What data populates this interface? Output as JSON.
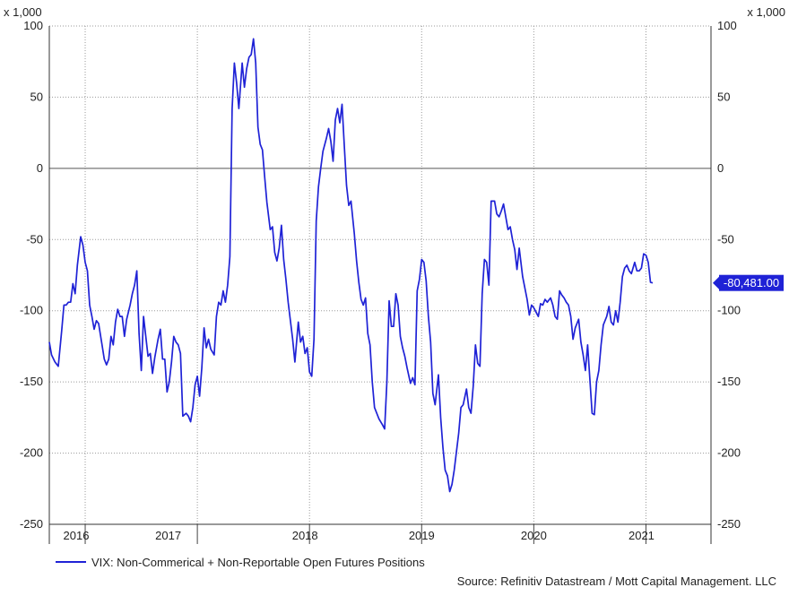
{
  "chart_data": {
    "type": "line",
    "title": "",
    "y_unit_left": "x 1,000",
    "y_unit_right": "x 1,000",
    "ylim": [
      -250,
      100
    ],
    "y_ticks": [
      {
        "value": 100,
        "label": "100"
      },
      {
        "value": 50,
        "label": "50"
      },
      {
        "value": 0,
        "label": "0"
      },
      {
        "value": -50,
        "label": "-50"
      },
      {
        "value": -100,
        "label": "-100"
      },
      {
        "value": -150,
        "label": "-150"
      },
      {
        "value": -200,
        "label": "-200"
      },
      {
        "value": -250,
        "label": "-250"
      }
    ],
    "xlim": [
      2015.68,
      2021.58
    ],
    "year_boundaries": [
      2016,
      2017,
      2018,
      2019,
      2020,
      2021
    ],
    "x_tick_labels": [
      {
        "x": 2015.92,
        "label": "2016"
      },
      {
        "x": 2016.74,
        "label": "2017"
      },
      {
        "x": 2017.96,
        "label": "2018"
      },
      {
        "x": 2019.0,
        "label": "2019"
      },
      {
        "x": 2020.0,
        "label": "2020"
      },
      {
        "x": 2020.96,
        "label": "2021"
      }
    ],
    "grid": true,
    "zero_line": true,
    "last_value_label": "-80,481.00",
    "last_value": -80.481,
    "series_color": "#1f22d6",
    "series": [
      {
        "name": "VIX: Non-Commerical + Non-Reportable Open Futures Positions",
        "points": [
          [
            2015.68,
            -122
          ],
          [
            2015.7,
            -131
          ],
          [
            2015.73,
            -136
          ],
          [
            2015.76,
            -139
          ],
          [
            2015.79,
            -114
          ],
          [
            2015.81,
            -96
          ],
          [
            2015.83,
            -96
          ],
          [
            2015.85,
            -94
          ],
          [
            2015.87,
            -94
          ],
          [
            2015.89,
            -81
          ],
          [
            2015.91,
            -88
          ],
          [
            2015.93,
            -68
          ],
          [
            2015.96,
            -48
          ],
          [
            2015.98,
            -54
          ],
          [
            2016.0,
            -66
          ],
          [
            2016.02,
            -72
          ],
          [
            2016.04,
            -96
          ],
          [
            2016.06,
            -104
          ],
          [
            2016.08,
            -113
          ],
          [
            2016.1,
            -107
          ],
          [
            2016.12,
            -109
          ],
          [
            2016.15,
            -124
          ],
          [
            2016.17,
            -134
          ],
          [
            2016.19,
            -138
          ],
          [
            2016.21,
            -134
          ],
          [
            2016.23,
            -118
          ],
          [
            2016.25,
            -124
          ],
          [
            2016.27,
            -108
          ],
          [
            2016.29,
            -99
          ],
          [
            2016.31,
            -104
          ],
          [
            2016.33,
            -104
          ],
          [
            2016.35,
            -118
          ],
          [
            2016.37,
            -106
          ],
          [
            2016.4,
            -96
          ],
          [
            2016.42,
            -88
          ],
          [
            2016.44,
            -82
          ],
          [
            2016.46,
            -72
          ],
          [
            2016.48,
            -116
          ],
          [
            2016.5,
            -142
          ],
          [
            2016.52,
            -104
          ],
          [
            2016.54,
            -118
          ],
          [
            2016.56,
            -132
          ],
          [
            2016.58,
            -130
          ],
          [
            2016.6,
            -144
          ],
          [
            2016.62,
            -133
          ],
          [
            2016.65,
            -120
          ],
          [
            2016.67,
            -113
          ],
          [
            2016.69,
            -134
          ],
          [
            2016.71,
            -134
          ],
          [
            2016.73,
            -157
          ],
          [
            2016.75,
            -150
          ],
          [
            2016.77,
            -136
          ],
          [
            2016.79,
            -118
          ],
          [
            2016.81,
            -122
          ],
          [
            2016.83,
            -124
          ],
          [
            2016.85,
            -130
          ],
          [
            2016.87,
            -174
          ],
          [
            2016.9,
            -172
          ],
          [
            2016.92,
            -174
          ],
          [
            2016.94,
            -178
          ],
          [
            2016.96,
            -168
          ],
          [
            2016.98,
            -152
          ],
          [
            2017.0,
            -146
          ],
          [
            2017.02,
            -160
          ],
          [
            2017.04,
            -140
          ],
          [
            2017.06,
            -112
          ],
          [
            2017.08,
            -126
          ],
          [
            2017.1,
            -120
          ],
          [
            2017.12,
            -127
          ],
          [
            2017.15,
            -131
          ],
          [
            2017.17,
            -104
          ],
          [
            2017.19,
            -94
          ],
          [
            2017.21,
            -96
          ],
          [
            2017.23,
            -86
          ],
          [
            2017.25,
            -94
          ],
          [
            2017.27,
            -82
          ],
          [
            2017.29,
            -62
          ],
          [
            2017.31,
            42
          ],
          [
            2017.33,
            74
          ],
          [
            2017.35,
            60
          ],
          [
            2017.37,
            42
          ],
          [
            2017.4,
            74
          ],
          [
            2017.42,
            57
          ],
          [
            2017.44,
            70
          ],
          [
            2017.46,
            78
          ],
          [
            2017.48,
            80
          ],
          [
            2017.5,
            91
          ],
          [
            2017.52,
            74
          ],
          [
            2017.54,
            29
          ],
          [
            2017.56,
            17
          ],
          [
            2017.58,
            13
          ],
          [
            2017.6,
            -6
          ],
          [
            2017.62,
            -24
          ],
          [
            2017.65,
            -43
          ],
          [
            2017.67,
            -41
          ],
          [
            2017.69,
            -59
          ],
          [
            2017.71,
            -65
          ],
          [
            2017.73,
            -56
          ],
          [
            2017.75,
            -40
          ],
          [
            2017.77,
            -64
          ],
          [
            2017.79,
            -78
          ],
          [
            2017.81,
            -94
          ],
          [
            2017.83,
            -107
          ],
          [
            2017.85,
            -120
          ],
          [
            2017.87,
            -136
          ],
          [
            2017.9,
            -108
          ],
          [
            2017.92,
            -122
          ],
          [
            2017.94,
            -118
          ],
          [
            2017.96,
            -130
          ],
          [
            2017.98,
            -126
          ],
          [
            2018.0,
            -143
          ],
          [
            2018.02,
            -146
          ],
          [
            2018.04,
            -120
          ],
          [
            2018.06,
            -37
          ],
          [
            2018.08,
            -13
          ],
          [
            2018.1,
            0
          ],
          [
            2018.12,
            12
          ],
          [
            2018.15,
            21
          ],
          [
            2018.17,
            28
          ],
          [
            2018.19,
            19
          ],
          [
            2018.21,
            5
          ],
          [
            2018.23,
            34
          ],
          [
            2018.25,
            42
          ],
          [
            2018.27,
            32
          ],
          [
            2018.29,
            45
          ],
          [
            2018.31,
            16
          ],
          [
            2018.33,
            -12
          ],
          [
            2018.35,
            -26
          ],
          [
            2018.37,
            -23
          ],
          [
            2018.4,
            -46
          ],
          [
            2018.42,
            -65
          ],
          [
            2018.44,
            -80
          ],
          [
            2018.46,
            -92
          ],
          [
            2018.48,
            -96
          ],
          [
            2018.5,
            -91
          ],
          [
            2018.52,
            -116
          ],
          [
            2018.54,
            -124
          ],
          [
            2018.56,
            -150
          ],
          [
            2018.58,
            -168
          ],
          [
            2018.6,
            -172
          ],
          [
            2018.62,
            -176
          ],
          [
            2018.65,
            -180
          ],
          [
            2018.67,
            -183
          ],
          [
            2018.69,
            -150
          ],
          [
            2018.71,
            -93
          ],
          [
            2018.73,
            -111
          ],
          [
            2018.75,
            -111
          ],
          [
            2018.77,
            -88
          ],
          [
            2018.79,
            -96
          ],
          [
            2018.81,
            -118
          ],
          [
            2018.83,
            -126
          ],
          [
            2018.85,
            -132
          ],
          [
            2018.87,
            -140
          ],
          [
            2018.9,
            -151
          ],
          [
            2018.92,
            -147
          ],
          [
            2018.94,
            -152
          ],
          [
            2018.96,
            -86
          ],
          [
            2018.98,
            -78
          ],
          [
            2019.0,
            -64
          ],
          [
            2019.02,
            -66
          ],
          [
            2019.04,
            -79
          ],
          [
            2019.06,
            -104
          ],
          [
            2019.08,
            -122
          ],
          [
            2019.1,
            -158
          ],
          [
            2019.12,
            -166
          ],
          [
            2019.15,
            -145
          ],
          [
            2019.17,
            -175
          ],
          [
            2019.19,
            -196
          ],
          [
            2019.21,
            -212
          ],
          [
            2019.23,
            -216
          ],
          [
            2019.25,
            -227
          ],
          [
            2019.27,
            -222
          ],
          [
            2019.29,
            -212
          ],
          [
            2019.31,
            -199
          ],
          [
            2019.33,
            -186
          ],
          [
            2019.35,
            -168
          ],
          [
            2019.37,
            -166
          ],
          [
            2019.4,
            -155
          ],
          [
            2019.42,
            -168
          ],
          [
            2019.44,
            -172
          ],
          [
            2019.46,
            -153
          ],
          [
            2019.48,
            -124
          ],
          [
            2019.5,
            -137
          ],
          [
            2019.52,
            -139
          ],
          [
            2019.54,
            -88
          ],
          [
            2019.56,
            -64
          ],
          [
            2019.58,
            -66
          ],
          [
            2019.6,
            -82
          ],
          [
            2019.62,
            -23
          ],
          [
            2019.65,
            -23
          ],
          [
            2019.67,
            -32
          ],
          [
            2019.69,
            -34
          ],
          [
            2019.71,
            -30
          ],
          [
            2019.73,
            -25
          ],
          [
            2019.75,
            -34
          ],
          [
            2019.77,
            -43
          ],
          [
            2019.79,
            -41
          ],
          [
            2019.81,
            -50
          ],
          [
            2019.83,
            -57
          ],
          [
            2019.85,
            -71
          ],
          [
            2019.87,
            -56
          ],
          [
            2019.9,
            -76
          ],
          [
            2019.92,
            -84
          ],
          [
            2019.94,
            -92
          ],
          [
            2019.96,
            -103
          ],
          [
            2019.98,
            -96
          ],
          [
            2020.0,
            -98
          ],
          [
            2020.02,
            -101
          ],
          [
            2020.04,
            -104
          ],
          [
            2020.06,
            -95
          ],
          [
            2020.08,
            -96
          ],
          [
            2020.1,
            -92
          ],
          [
            2020.12,
            -94
          ],
          [
            2020.15,
            -91
          ],
          [
            2020.17,
            -96
          ],
          [
            2020.19,
            -104
          ],
          [
            2020.21,
            -106
          ],
          [
            2020.23,
            -86
          ],
          [
            2020.25,
            -89
          ],
          [
            2020.27,
            -91
          ],
          [
            2020.29,
            -94
          ],
          [
            2020.31,
            -96
          ],
          [
            2020.33,
            -104
          ],
          [
            2020.35,
            -120
          ],
          [
            2020.37,
            -112
          ],
          [
            2020.4,
            -106
          ],
          [
            2020.42,
            -122
          ],
          [
            2020.44,
            -131
          ],
          [
            2020.46,
            -142
          ],
          [
            2020.48,
            -124
          ],
          [
            2020.5,
            -148
          ],
          [
            2020.52,
            -172
          ],
          [
            2020.54,
            -173
          ],
          [
            2020.56,
            -150
          ],
          [
            2020.58,
            -142
          ],
          [
            2020.6,
            -124
          ],
          [
            2020.62,
            -110
          ],
          [
            2020.65,
            -104
          ],
          [
            2020.67,
            -97
          ],
          [
            2020.69,
            -108
          ],
          [
            2020.71,
            -110
          ],
          [
            2020.73,
            -100
          ],
          [
            2020.75,
            -108
          ],
          [
            2020.77,
            -94
          ],
          [
            2020.79,
            -76
          ],
          [
            2020.81,
            -70
          ],
          [
            2020.83,
            -68
          ],
          [
            2020.85,
            -72
          ],
          [
            2020.87,
            -74
          ],
          [
            2020.9,
            -66
          ],
          [
            2020.92,
            -72
          ],
          [
            2020.94,
            -72
          ],
          [
            2020.96,
            -70
          ],
          [
            2020.98,
            -60
          ],
          [
            2021.0,
            -61
          ],
          [
            2021.02,
            -66
          ],
          [
            2021.04,
            -80
          ],
          [
            2021.06,
            -80.481
          ]
        ]
      }
    ]
  },
  "legend": {
    "label": "VIX: Non-Commerical + Non-Reportable Open Futures Positions"
  },
  "source": "Source: Refinitiv Datastream / Mott Capital Management. LLC"
}
